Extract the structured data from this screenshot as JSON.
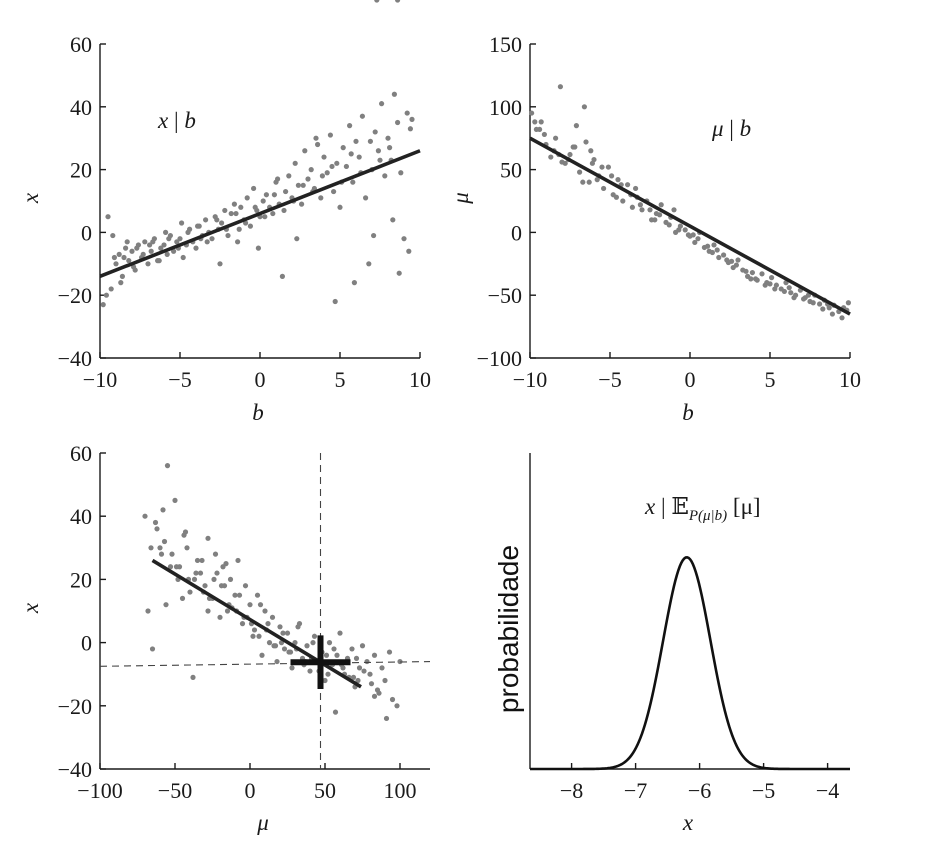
{
  "chart_data": [
    {
      "type": "scatter",
      "panel": "top-left",
      "annotation": {
        "x": "x",
        "sep": " | ",
        "y": "b"
      },
      "xlabel": "b",
      "ylabel": "x",
      "xlim": [
        -10,
        10
      ],
      "ylim": [
        -40,
        60
      ],
      "xticks": [
        -10,
        -5,
        0,
        5,
        10
      ],
      "xtick_labels": [
        "−10",
        "−5",
        "0",
        "5",
        "10"
      ],
      "yticks": [
        -40,
        -20,
        0,
        20,
        40,
        60
      ],
      "ytick_labels": [
        "−40",
        "−20",
        "0",
        "20",
        "40",
        "60"
      ],
      "grid": false,
      "regression_line": {
        "x": [
          -10,
          10
        ],
        "y": [
          -14,
          26
        ]
      },
      "points_x": [
        -9.8,
        -9.5,
        -9.3,
        -9.0,
        -8.8,
        -8.6,
        -8.4,
        -8.2,
        -8.0,
        -7.8,
        -7.6,
        -7.4,
        -7.2,
        -7.0,
        -6.8,
        -6.6,
        -6.4,
        -6.2,
        -6.0,
        -5.8,
        -5.6,
        -5.4,
        -5.2,
        -5.0,
        -4.8,
        -4.6,
        -4.4,
        -4.2,
        -4.0,
        -3.8,
        -3.6,
        -3.4,
        -3.2,
        -3.0,
        -2.8,
        -2.6,
        -2.4,
        -2.2,
        -2.0,
        -1.8,
        -1.6,
        -1.4,
        -1.2,
        -1.0,
        -0.8,
        -0.6,
        -0.4,
        -0.2,
        0.0,
        0.2,
        0.4,
        0.6,
        0.8,
        1.0,
        1.2,
        1.4,
        1.6,
        1.8,
        2.0,
        2.2,
        2.4,
        2.6,
        2.8,
        3.0,
        3.2,
        3.4,
        3.6,
        3.8,
        4.0,
        4.2,
        4.4,
        4.6,
        4.8,
        5.0,
        5.2,
        5.4,
        5.6,
        5.8,
        6.0,
        6.2,
        6.4,
        6.6,
        6.8,
        7.0,
        7.2,
        7.4,
        7.6,
        7.8,
        8.0,
        8.2,
        8.4,
        8.6,
        8.8,
        9.0,
        9.2,
        9.4,
        -9.6,
        -9.1,
        -8.7,
        -8.3,
        -7.9,
        -7.3,
        -6.9,
        -6.3,
        -5.7,
        -5.1,
        -4.5,
        -3.9,
        -3.3,
        -2.7,
        -2.1,
        -1.5,
        -0.9,
        -0.3,
        0.3,
        0.9,
        1.5,
        2.1,
        2.7,
        3.3,
        3.9,
        4.5,
        5.1,
        5.7,
        6.3,
        6.9,
        7.5,
        8.1,
        8.7,
        9.3,
        -9.2,
        -8.5,
        -7.7,
        -6.7,
        -5.9,
        -4.9,
        -3.7,
        -2.5,
        -1.3,
        -0.1,
        1.1,
        2.3,
        3.5,
        4.7,
        5.9,
        7.1,
        8.3,
        9.5,
        7.3,
        8.6
      ],
      "points_y": [
        -23,
        5,
        -18,
        -10,
        -7,
        -14,
        -5,
        -9,
        -6,
        -12,
        -4,
        -8,
        -3,
        -10,
        -6,
        -2,
        -9,
        -5,
        -4,
        -7,
        -1,
        -6,
        -3,
        -2,
        -8,
        -4,
        1,
        -3,
        -5,
        2,
        -1,
        4,
        0,
        -2,
        5,
        1,
        3,
        7,
        -1,
        6,
        9,
        -3,
        8,
        4,
        11,
        2,
        14,
        7,
        5,
        10,
        12,
        8,
        6,
        16,
        9,
        -14,
        13,
        18,
        11,
        22,
        15,
        9,
        26,
        17,
        20,
        14,
        28,
        11,
        24,
        19,
        31,
        13,
        22,
        8,
        27,
        21,
        34,
        16,
        29,
        24,
        37,
        11,
        -10,
        20,
        32,
        26,
        41,
        18,
        30,
        23,
        44,
        35,
        19,
        -2,
        38,
        33,
        -20,
        -8,
        -16,
        -3,
        -11,
        -7,
        -4,
        -9,
        -2,
        -5,
        0,
        2,
        -3,
        4,
        1,
        6,
        3,
        8,
        5,
        12,
        7,
        10,
        15,
        13,
        18,
        21,
        16,
        25,
        19,
        29,
        23,
        27,
        -13,
        -6,
        -1,
        -8,
        -5,
        -3,
        0,
        3,
        -2,
        -10,
        1,
        -5,
        17,
        -2,
        30,
        -22,
        -16,
        -1,
        4,
        36
      ]
    },
    {
      "type": "scatter",
      "panel": "top-right",
      "annotation": {
        "x": "μ",
        "sep": " | ",
        "y": "b"
      },
      "xlabel": "b",
      "ylabel": "μ",
      "xlim": [
        -10,
        10
      ],
      "ylim": [
        -100,
        150
      ],
      "xticks": [
        -10,
        -5,
        0,
        5,
        10
      ],
      "xtick_labels": [
        "−10",
        "−5",
        "0",
        "5",
        "10"
      ],
      "yticks": [
        -100,
        -50,
        0,
        50,
        100,
        150
      ],
      "ytick_labels": [
        "−100",
        "−50",
        "0",
        "50",
        "100",
        "150"
      ],
      "grid": false,
      "regression_line": {
        "x": [
          -10,
          10
        ],
        "y": [
          75,
          -65
        ]
      },
      "points_x": [
        -9.9,
        -9.6,
        -9.3,
        -9.0,
        -8.7,
        -8.4,
        -8.1,
        -7.8,
        -7.5,
        -7.2,
        -6.9,
        -6.6,
        -6.3,
        -6.0,
        -5.7,
        -5.4,
        -5.1,
        -4.8,
        -4.5,
        -4.2,
        -3.9,
        -3.6,
        -3.3,
        -3.0,
        -2.7,
        -2.4,
        -2.1,
        -1.8,
        -1.5,
        -1.2,
        -0.9,
        -0.6,
        -0.3,
        0.0,
        0.3,
        0.6,
        0.9,
        1.2,
        1.5,
        1.8,
        2.1,
        2.4,
        2.7,
        3.0,
        3.3,
        3.6,
        3.9,
        4.2,
        4.5,
        4.8,
        5.1,
        5.4,
        5.7,
        6.0,
        6.3,
        6.6,
        6.9,
        7.2,
        7.5,
        7.8,
        8.1,
        8.4,
        8.7,
        9.0,
        9.3,
        9.6,
        9.9,
        -9.7,
        -9.1,
        -8.5,
        -8.0,
        -7.3,
        -6.7,
        -6.2,
        -5.5,
        -4.9,
        -4.3,
        -3.7,
        -3.1,
        -2.5,
        -1.9,
        -1.3,
        -0.7,
        -0.1,
        0.5,
        1.1,
        1.7,
        2.3,
        2.9,
        3.5,
        4.1,
        4.7,
        5.3,
        5.9,
        6.5,
        7.1,
        7.7,
        8.3,
        8.9,
        9.5,
        -8.2,
        -6.5,
        -9.4,
        -7.6,
        -5.8,
        -4.6,
        -3.4,
        -2.2,
        -1.0,
        0.2,
        1.4,
        2.6,
        3.8,
        5.0,
        6.2,
        7.4,
        8.6,
        9.8,
        -6.1,
        -7.1
      ],
      "points_y": [
        95,
        82,
        88,
        70,
        60,
        75,
        116,
        55,
        62,
        68,
        48,
        100,
        40,
        58,
        45,
        35,
        52,
        30,
        42,
        25,
        38,
        20,
        28,
        18,
        25,
        10,
        15,
        22,
        8,
        12,
        0,
        5,
        2,
        -3,
        -8,
        0,
        -12,
        -15,
        -10,
        -20,
        -18,
        -24,
        -28,
        -22,
        -30,
        -35,
        -32,
        -38,
        -33,
        -40,
        -36,
        -42,
        -45,
        -40,
        -48,
        -50,
        -46,
        -52,
        -55,
        -50,
        -57,
        -54,
        -60,
        -58,
        -63,
        -60,
        -56,
        88,
        78,
        65,
        56,
        68,
        40,
        65,
        52,
        45,
        38,
        30,
        22,
        18,
        14,
        6,
        2,
        -2,
        -5,
        -11,
        -14,
        -22,
        -26,
        -31,
        -37,
        -42,
        -45,
        -47,
        -52,
        -53,
        -56,
        -61,
        -65,
        -68,
        62,
        72,
        82,
        58,
        42,
        28,
        35,
        10,
        18,
        -2,
        -16,
        -23,
        -37,
        -41,
        -44,
        -50,
        -57,
        -62,
        55,
        85
      ]
    },
    {
      "type": "scatter",
      "panel": "bottom-left",
      "annotation": null,
      "xlabel": "μ",
      "ylabel": "x",
      "xlim": [
        -100,
        120
      ],
      "ylim": [
        -40,
        60
      ],
      "xticks": [
        -100,
        -50,
        0,
        50,
        100
      ],
      "xtick_labels": [
        "−100",
        "−50",
        "0",
        "50",
        "100"
      ],
      "yticks": [
        -40,
        -20,
        0,
        20,
        40,
        60
      ],
      "ytick_labels": [
        "−40",
        "−20",
        "0",
        "20",
        "40",
        "60"
      ],
      "grid": false,
      "regression_line": {
        "x": [
          -65,
          74
        ],
        "y": [
          26,
          -14
        ]
      },
      "reference_lines": {
        "vertical_x": 47,
        "horizontal": {
          "x": [
            -100,
            120
          ],
          "y": [
            -7.5,
            -6
          ]
        }
      },
      "cross_marker": {
        "x": 47,
        "y": -6.2,
        "half_width_x": 20,
        "half_height_y": 8.5
      },
      "points_x": [
        -70,
        -68,
        -65,
        -63,
        -60,
        -58,
        -56,
        -55,
        -53,
        -50,
        -48,
        -45,
        -43,
        -40,
        -38,
        -35,
        -33,
        -30,
        -28,
        -25,
        -23,
        -20,
        -18,
        -15,
        -13,
        -10,
        -8,
        -5,
        -3,
        0,
        2,
        5,
        8,
        10,
        13,
        15,
        18,
        20,
        23,
        25,
        28,
        30,
        33,
        35,
        38,
        40,
        43,
        45,
        48,
        50,
        53,
        55,
        58,
        60,
        63,
        65,
        68,
        70,
        73,
        75,
        78,
        80,
        83,
        85,
        88,
        90,
        93,
        95,
        98,
        100,
        -62,
        -57,
        -52,
        -47,
        -42,
        -37,
        -32,
        -27,
        -22,
        -17,
        -12,
        -7,
        -2,
        3,
        7,
        12,
        17,
        22,
        27,
        32,
        37,
        42,
        46,
        51,
        56,
        61,
        66,
        71,
        76,
        81,
        86,
        91,
        -59,
        -44,
        -36,
        -24,
        -14,
        -4,
        6,
        16,
        26,
        36,
        41,
        52,
        62,
        72,
        -66,
        -49,
        -31,
        -19,
        -9,
        1,
        11,
        21,
        31,
        44,
        57,
        69,
        83,
        -41,
        -28,
        -16
      ],
      "points_y": [
        40,
        10,
        -2,
        38,
        30,
        42,
        12,
        56,
        24,
        45,
        20,
        14,
        35,
        16,
        -11,
        26,
        22,
        18,
        33,
        14,
        28,
        8,
        24,
        10,
        20,
        15,
        26,
        6,
        18,
        12,
        2,
        15,
        -4,
        10,
        0,
        8,
        -6,
        5,
        -2,
        3,
        -8,
        0,
        6,
        -5,
        -1,
        -9,
        2,
        -6,
        -3,
        -12,
        0,
        -7,
        -4,
        3,
        -10,
        -5,
        -2,
        -14,
        -8,
        -1,
        -6,
        -10,
        -4,
        -15,
        -8,
        -12,
        -3,
        -18,
        -20,
        -6,
        36,
        32,
        28,
        24,
        30,
        20,
        26,
        14,
        22,
        18,
        11,
        15,
        8,
        4,
        12,
        6,
        -1,
        3,
        -3,
        5,
        -6,
        0,
        -9,
        -4,
        -2,
        -7,
        -11,
        -5,
        -9,
        -13,
        -16,
        -24,
        28,
        34,
        22,
        20,
        12,
        8,
        2,
        -1,
        -3,
        -7,
        -5,
        -10,
        -8,
        -12,
        30,
        24,
        16,
        18,
        10,
        6,
        4,
        0,
        -2,
        -6,
        -22,
        -11,
        -17,
        20,
        10,
        25
      ]
    },
    {
      "type": "line",
      "panel": "bottom-right",
      "annotation": {
        "x": "x",
        "sep": " | ",
        "E": "𝔼",
        "sub": "P(μ|b)",
        "arg": " [μ]"
      },
      "xlabel": "x",
      "ylabel": "probabilidade",
      "xlim": [
        -8.65,
        -3.65
      ],
      "xticks": [
        -8,
        -7,
        -6,
        -5,
        -4
      ],
      "xtick_labels": [
        "−8",
        "−7",
        "−6",
        "−5",
        "−4"
      ],
      "yticks": [],
      "grid": false,
      "curve": {
        "shape": "gaussian",
        "mean": -6.2,
        "sd": 0.37,
        "peak_fraction_of_axis_height": 0.67
      }
    }
  ]
}
